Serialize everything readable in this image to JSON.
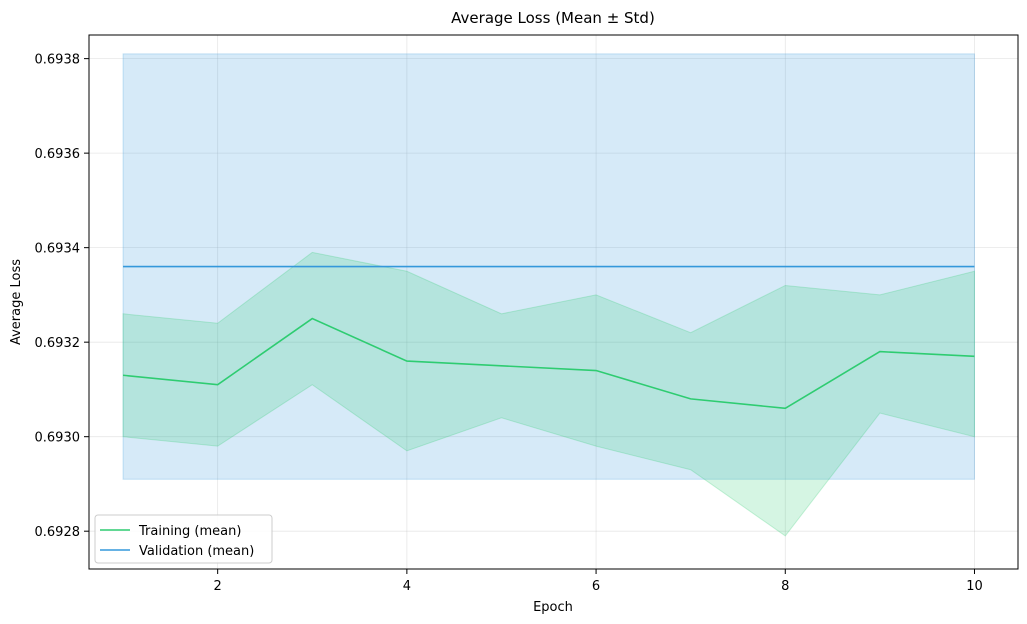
{
  "chart_data": {
    "type": "line",
    "title": "Average Loss (Mean ± Std)",
    "xlabel": "Epoch",
    "ylabel": "Average Loss",
    "xlim": [
      0.64,
      10.46
    ],
    "ylim": [
      0.69272,
      0.69385
    ],
    "xticks": [
      2,
      4,
      6,
      8,
      10
    ],
    "yticks": [
      0.6928,
      0.693,
      0.6932,
      0.6934,
      0.6936,
      0.6938
    ],
    "ytick_labels": [
      "0.6928",
      "0.6930",
      "0.6932",
      "0.6934",
      "0.6936",
      "0.6938"
    ],
    "grid": true,
    "legend_position": "lower-left",
    "x": [
      1,
      2,
      3,
      4,
      5,
      6,
      7,
      8,
      9,
      10
    ],
    "series": [
      {
        "name": "Training (mean)",
        "color": "#2ecc71",
        "band_color": "#2ecc71",
        "mean": [
          0.69313,
          0.69311,
          0.69325,
          0.69316,
          0.69315,
          0.69314,
          0.69308,
          0.69306,
          0.69318,
          0.69317
        ],
        "upper": [
          0.69326,
          0.69324,
          0.69339,
          0.69335,
          0.69326,
          0.6933,
          0.69322,
          0.69332,
          0.6933,
          0.69335
        ],
        "lower": [
          0.693,
          0.69298,
          0.69311,
          0.69297,
          0.69304,
          0.69298,
          0.69293,
          0.69279,
          0.69305,
          0.693
        ]
      },
      {
        "name": "Validation (mean)",
        "color": "#3498db",
        "band_color": "#3498db",
        "mean": [
          0.69336,
          0.69336,
          0.69336,
          0.69336,
          0.69336,
          0.69336,
          0.69336,
          0.69336,
          0.69336,
          0.69336
        ],
        "upper": [
          0.69381,
          0.69381,
          0.69381,
          0.69381,
          0.69381,
          0.69381,
          0.69381,
          0.69381,
          0.69381,
          0.69381
        ],
        "lower": [
          0.69291,
          0.69291,
          0.69291,
          0.69291,
          0.69291,
          0.69291,
          0.69291,
          0.69291,
          0.69291,
          0.69291
        ]
      }
    ]
  }
}
